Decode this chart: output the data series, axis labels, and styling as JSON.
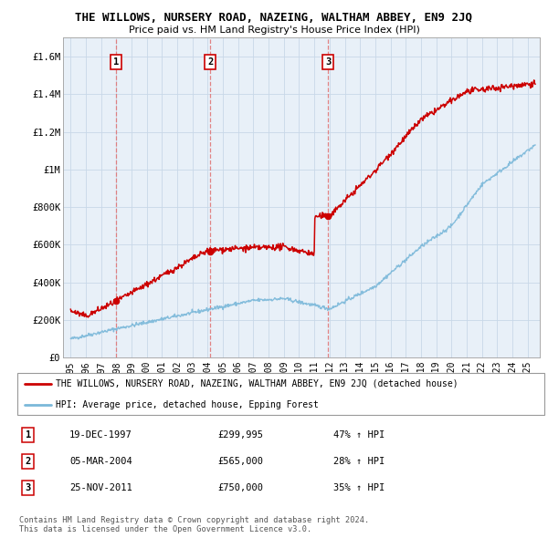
{
  "title": "THE WILLOWS, NURSERY ROAD, NAZEING, WALTHAM ABBEY, EN9 2JQ",
  "subtitle": "Price paid vs. HM Land Registry's House Price Index (HPI)",
  "ylim": [
    0,
    1700000
  ],
  "yticks": [
    0,
    200000,
    400000,
    600000,
    800000,
    1000000,
    1200000,
    1400000,
    1600000
  ],
  "ytick_labels": [
    "£0",
    "£200K",
    "£400K",
    "£600K",
    "£800K",
    "£1M",
    "£1.2M",
    "£1.4M",
    "£1.6M"
  ],
  "hpi_color": "#7ab8d9",
  "price_color": "#cc0000",
  "dashed_color": "#e07070",
  "sales": [
    {
      "date_num": 1997.97,
      "price": 299995,
      "label": "1"
    },
    {
      "date_num": 2004.18,
      "price": 565000,
      "label": "2"
    },
    {
      "date_num": 2011.9,
      "price": 750000,
      "label": "3"
    }
  ],
  "legend_line1": "THE WILLOWS, NURSERY ROAD, NAZEING, WALTHAM ABBEY, EN9 2JQ (detached house)",
  "legend_line2": "HPI: Average price, detached house, Epping Forest",
  "table_rows": [
    {
      "num": "1",
      "date": "19-DEC-1997",
      "price": "£299,995",
      "pct": "47% ↑ HPI"
    },
    {
      "num": "2",
      "date": "05-MAR-2004",
      "price": "£565,000",
      "pct": "28% ↑ HPI"
    },
    {
      "num": "3",
      "date": "25-NOV-2011",
      "price": "£750,000",
      "pct": "35% ↑ HPI"
    }
  ],
  "footer": "Contains HM Land Registry data © Crown copyright and database right 2024.\nThis data is licensed under the Open Government Licence v3.0.",
  "bg_color": "#ffffff",
  "chart_bg": "#e8f0f8",
  "grid_color": "#c8d8e8"
}
